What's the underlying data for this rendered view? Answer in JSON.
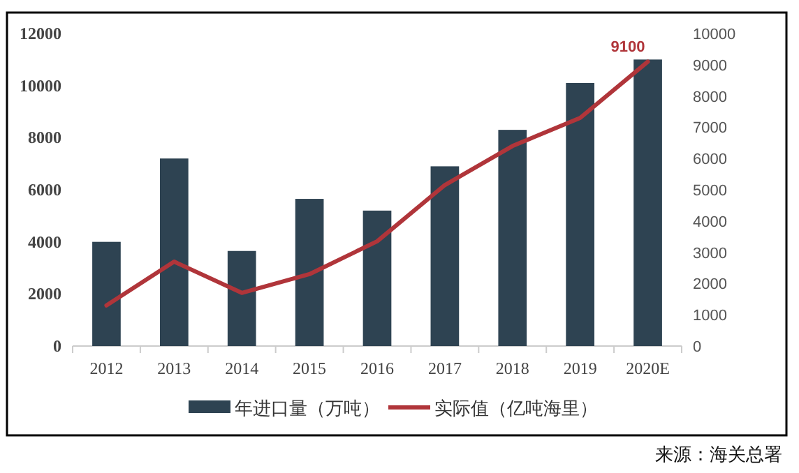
{
  "chart_data": {
    "type": "bar",
    "categories": [
      "2012",
      "2013",
      "2014",
      "2015",
      "2016",
      "2017",
      "2018",
      "2019",
      "2020E"
    ],
    "series": [
      {
        "name": "年进口量（万吨）",
        "color": "#2e4352",
        "values": [
          4000,
          7200,
          3650,
          5650,
          5200,
          6900,
          8300,
          10100,
          11000
        ]
      },
      {
        "name": "实际值（亿吨海里）",
        "type": "line",
        "axis": "y2",
        "color": "#b0353a",
        "values": [
          1300,
          2700,
          1700,
          2300,
          3350,
          5150,
          6400,
          7300,
          9100
        ],
        "value_labels": [
          null,
          null,
          null,
          null,
          null,
          null,
          null,
          null,
          "9100"
        ]
      }
    ],
    "ylim": [
      0,
      12000
    ],
    "yticks": [
      0,
      2000,
      4000,
      6000,
      8000,
      10000,
      12000
    ],
    "y2lim": [
      0,
      10000
    ],
    "y2ticks": [
      0,
      1000,
      2000,
      3000,
      4000,
      5000,
      6000,
      7000,
      8000,
      9000,
      10000
    ],
    "legend": "bottom",
    "grid": false,
    "annotations": [
      "来源：海关总署"
    ]
  }
}
